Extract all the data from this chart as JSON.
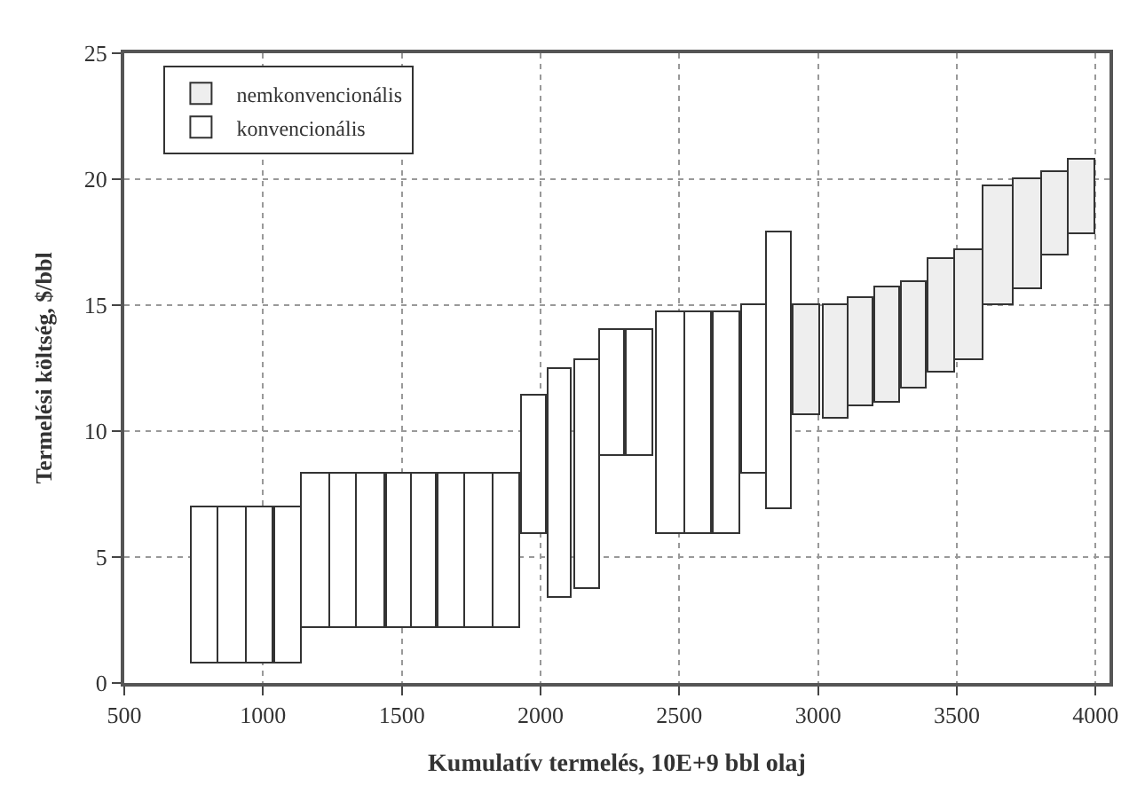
{
  "chart_data": {
    "type": "bar",
    "xlabel": "Kumulatív termelés, 10E+9 bbl olaj",
    "ylabel": "Termelési költség, $/bbl",
    "series": [
      {
        "name": "nemkonvencionális",
        "color": "#eeeeee",
        "x": [
          2960,
          3065,
          3155,
          3250,
          3345,
          3445,
          3545,
          3650,
          3755,
          3855,
          3950
        ],
        "base": [
          10.6,
          10.5,
          11.0,
          11.1,
          11.7,
          12.3,
          12.8,
          15.0,
          15.6,
          17.0,
          17.8
        ],
        "values": [
          4.4,
          4.5,
          4.3,
          4.6,
          4.2,
          4.5,
          4.4,
          4.7,
          4.4,
          3.3,
          3.0
        ]
      },
      {
        "name": "konvencionális",
        "color": "#ffffff",
        "x": [
          790,
          890,
          990,
          1090,
          1190,
          1290,
          1390,
          1490,
          1580,
          1680,
          1780,
          1880,
          1980,
          2070,
          2170,
          2260,
          2360,
          2470,
          2570,
          2670,
          2770,
          2860
        ],
        "base": [
          0.8,
          0.8,
          0.8,
          0.8,
          2.2,
          2.2,
          2.2,
          2.2,
          2.2,
          2.2,
          2.2,
          2.2,
          5.9,
          3.4,
          3.7,
          9.0,
          9.0,
          5.9,
          5.9,
          5.9,
          8.3,
          6.9
        ],
        "values": [
          6.2,
          6.2,
          6.2,
          6.2,
          6.1,
          6.1,
          6.1,
          6.1,
          6.1,
          6.1,
          6.1,
          6.1,
          5.5,
          9.1,
          9.1,
          5.0,
          5.0,
          8.8,
          8.8,
          8.8,
          6.7,
          11.0
        ]
      }
    ],
    "xlim": [
      500,
      4050
    ],
    "xticks": [
      500,
      1000,
      1500,
      2000,
      2500,
      3000,
      3500,
      4000
    ],
    "ylim": [
      0,
      25
    ],
    "yticks": [
      0,
      5,
      10,
      15,
      20,
      25
    ],
    "grid": true,
    "legend": "top left"
  }
}
